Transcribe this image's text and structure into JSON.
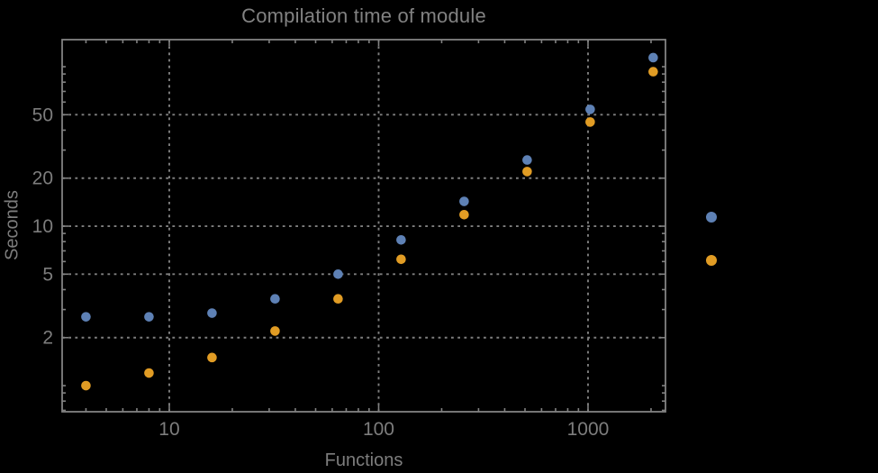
{
  "colors": {
    "background": "#000000",
    "text": "#7d7d7d",
    "title_text": "#828282",
    "frame": "#828282",
    "grid": "#7f7f7f",
    "series_blue": "#5E81B5",
    "series_orange": "#E19C24"
  },
  "chart_data": {
    "type": "scatter",
    "title": "Compilation time of module",
    "xlabel": "Functions",
    "ylabel": "Seconds",
    "x_scale": "log",
    "y_scale": "log",
    "xlim": [
      3.078,
      2344
    ],
    "ylim": [
      0.686,
      147.8
    ],
    "grid": "dashed lines at labeled major ticks only",
    "x": [
      4,
      8,
      16,
      32,
      64,
      128,
      256,
      512,
      1024,
      2048
    ],
    "series": [
      {
        "name": "blue",
        "color": "#5E81B5",
        "values": [
          2.7,
          2.7,
          2.85,
          3.5,
          5.0,
          8.2,
          14.3,
          26,
          54,
          114
        ]
      },
      {
        "name": "orange",
        "color": "#E19C24",
        "values": [
          1.0,
          1.2,
          1.5,
          2.2,
          3.5,
          6.2,
          11.8,
          22,
          45,
          93
        ]
      }
    ],
    "x_ticks_major": [
      10,
      100,
      1000
    ],
    "x_tick_labels": [
      "10",
      "100",
      "1000"
    ],
    "x_ticks_minor": [
      4,
      5,
      6,
      7,
      8,
      9,
      20,
      30,
      40,
      50,
      60,
      70,
      80,
      90,
      200,
      300,
      400,
      500,
      600,
      700,
      800,
      900,
      2000
    ],
    "y_ticks_major": [
      2,
      5,
      10,
      20,
      50
    ],
    "y_tick_labels": [
      "2",
      "5",
      "10",
      "20",
      "50"
    ],
    "y_ticks_minor": [
      0.7,
      0.8,
      0.9,
      1,
      3,
      4,
      6,
      7,
      8,
      9,
      30,
      40,
      60,
      70,
      80,
      90,
      100
    ],
    "legend": {
      "position": "right-of-plot",
      "labels_visible": false,
      "markers": [
        {
          "series": "blue",
          "color": "#5E81B5"
        },
        {
          "series": "orange",
          "color": "#E19C24"
        }
      ]
    }
  }
}
